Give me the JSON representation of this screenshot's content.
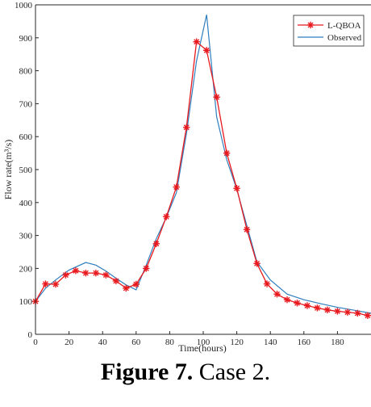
{
  "chart_data": {
    "type": "line",
    "xlabel": "Time(hours)",
    "ylabel": "Flow rate(m³/s)",
    "xlim": [
      0,
      200
    ],
    "ylim": [
      0,
      1000
    ],
    "xticks": [
      0,
      20,
      40,
      60,
      80,
      100,
      120,
      140,
      160,
      180
    ],
    "yticks": [
      0,
      100,
      200,
      300,
      400,
      500,
      600,
      700,
      800,
      900,
      1000
    ],
    "grid": false,
    "legend_position": "top-right",
    "series": [
      {
        "name": "L-QBOA",
        "color": "#e8191e",
        "marker": "asterisk",
        "x": [
          0,
          6,
          12,
          18,
          24,
          30,
          36,
          42,
          48,
          54,
          60,
          66,
          72,
          78,
          84,
          90,
          96,
          102,
          108,
          114,
          120,
          126,
          132,
          138,
          144,
          150,
          156,
          162,
          168,
          174,
          180,
          186,
          192,
          198
        ],
        "y": [
          100,
          153,
          152,
          180,
          193,
          186,
          186,
          180,
          162,
          140,
          152,
          200,
          275,
          357,
          447,
          628,
          888,
          862,
          720,
          550,
          443,
          318,
          215,
          153,
          122,
          105,
          95,
          87,
          80,
          74,
          70,
          67,
          64,
          57
        ]
      },
      {
        "name": "Observed",
        "color": "#2f7fbf",
        "marker": "none",
        "x": [
          0,
          6,
          12,
          20,
          30,
          36,
          42,
          48,
          54,
          60,
          66,
          72,
          78,
          84,
          90,
          96,
          102,
          108,
          114,
          120,
          126,
          132,
          140,
          150,
          160,
          170,
          180,
          190,
          200
        ],
        "y": [
          100,
          140,
          165,
          195,
          218,
          210,
          192,
          170,
          150,
          135,
          210,
          290,
          355,
          430,
          610,
          830,
          970,
          660,
          530,
          440,
          330,
          220,
          165,
          122,
          105,
          93,
          82,
          73,
          64
        ]
      }
    ]
  },
  "caption": {
    "label": "Figure 7.",
    "text": "Case 2."
  }
}
